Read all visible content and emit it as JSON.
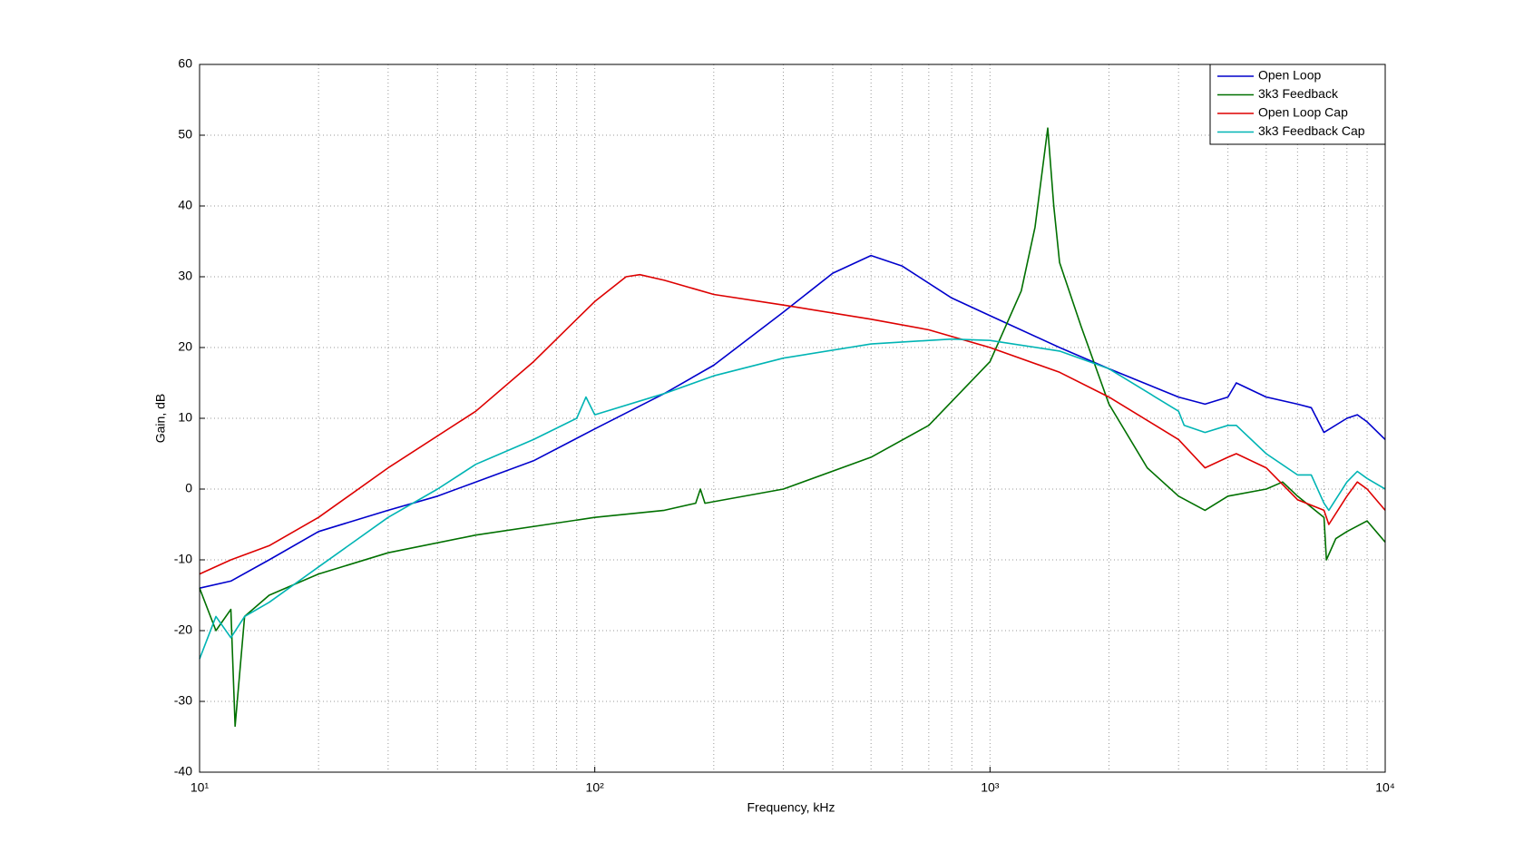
{
  "chart_data": {
    "type": "line",
    "xlabel": "Frequency, kHz",
    "ylabel": "Gain, dB",
    "xscale": "log",
    "grid": true,
    "legend": "top-right",
    "xlim": [
      10,
      10000
    ],
    "xticks": [
      {
        "value": 10,
        "label": "10¹"
      },
      {
        "value": 100,
        "label": "10²"
      },
      {
        "value": 1000,
        "label": "10³"
      },
      {
        "value": 10000,
        "label": "10⁴"
      }
    ],
    "xminorticks": [
      20,
      30,
      40,
      50,
      60,
      70,
      80,
      90,
      200,
      300,
      400,
      500,
      600,
      700,
      800,
      900,
      2000,
      3000,
      4000,
      5000,
      6000,
      7000,
      8000,
      9000
    ],
    "ylim": [
      -40,
      60
    ],
    "yticks": [
      -40,
      -30,
      -20,
      -10,
      0,
      10,
      20,
      30,
      40,
      50,
      60
    ],
    "series": [
      {
        "name": "Open Loop",
        "color": "#0000cc",
        "x": [
          10,
          12,
          15,
          20,
          30,
          40,
          50,
          70,
          100,
          150,
          200,
          300,
          400,
          500,
          600,
          800,
          1000,
          1500,
          2000,
          3000,
          3500,
          4000,
          4200,
          5000,
          6000,
          6500,
          7000,
          8000,
          8500,
          9000,
          10000
        ],
        "values": [
          -14,
          -13,
          -10,
          -6,
          -3,
          -1,
          1,
          4,
          8.5,
          13.5,
          17.5,
          25,
          30.5,
          33,
          31.5,
          27,
          24.5,
          20,
          17,
          13,
          12,
          13,
          15,
          13,
          12,
          11.5,
          8,
          10,
          10.5,
          9.5,
          7
        ]
      },
      {
        "name": "3k3 Feedback",
        "color": "#007000",
        "x": [
          10,
          11,
          12,
          12.3,
          13,
          15,
          20,
          30,
          50,
          100,
          150,
          180,
          185,
          190,
          300,
          500,
          700,
          1000,
          1200,
          1300,
          1400,
          1450,
          1500,
          1700,
          2000,
          2500,
          3000,
          3500,
          4000,
          5000,
          5500,
          6000,
          7000,
          7100,
          7500,
          8000,
          9000,
          10000
        ],
        "values": [
          -14,
          -20,
          -17,
          -33.5,
          -18,
          -15,
          -12,
          -9,
          -6.5,
          -4,
          -3,
          -2,
          0,
          -2,
          0,
          4.5,
          9,
          18,
          28,
          37,
          51,
          40,
          32,
          23,
          12,
          3,
          -1,
          -3,
          -1,
          0,
          1,
          -1,
          -4,
          -10,
          -7,
          -6,
          -4.5,
          -7.5
        ]
      },
      {
        "name": "Open Loop Cap",
        "color": "#dd0000",
        "x": [
          10,
          12,
          15,
          20,
          30,
          50,
          70,
          90,
          100,
          120,
          130,
          150,
          200,
          300,
          500,
          700,
          1000,
          1500,
          2000,
          3000,
          3500,
          4000,
          4200,
          5000,
          6000,
          7000,
          7200,
          8000,
          8500,
          9000,
          10000
        ],
        "values": [
          -12,
          -10,
          -8,
          -4,
          3,
          11,
          18,
          24,
          26.5,
          30,
          30.3,
          29.5,
          27.5,
          26,
          24,
          22.5,
          20,
          16.5,
          13,
          7,
          3,
          4.5,
          5,
          3,
          -1.5,
          -3,
          -5,
          -1,
          1,
          0,
          -3
        ]
      },
      {
        "name": "3k3 Feedback Cap",
        "color": "#00b4b4",
        "x": [
          10,
          11,
          12,
          13,
          15,
          20,
          30,
          40,
          50,
          70,
          90,
          95,
          100,
          150,
          200,
          300,
          500,
          800,
          1000,
          1500,
          2000,
          3000,
          3100,
          3500,
          4000,
          4200,
          5000,
          6000,
          6500,
          7000,
          7200,
          8000,
          8500,
          9000,
          10000
        ],
        "values": [
          -24,
          -18,
          -21,
          -18,
          -16,
          -11,
          -4,
          0,
          3.5,
          7,
          10,
          13,
          10.5,
          13.5,
          16,
          18.5,
          20.5,
          21.2,
          21,
          19.5,
          17,
          11,
          9,
          8,
          9,
          9,
          5,
          2,
          2,
          -2,
          -3,
          1,
          2.5,
          1.5,
          0
        ]
      }
    ]
  }
}
